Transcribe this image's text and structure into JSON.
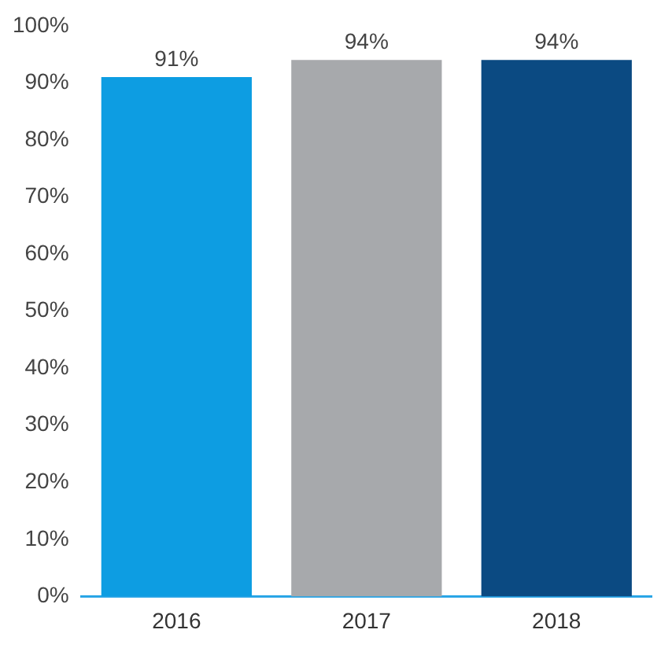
{
  "chart_data": {
    "type": "bar",
    "categories": [
      "2016",
      "2017",
      "2018"
    ],
    "values": [
      91,
      94,
      94
    ],
    "colors": [
      "#0d9de2",
      "#a7a9ac",
      "#0b4a82"
    ],
    "value_labels": [
      "91%",
      "94%",
      "94%"
    ],
    "ylim": [
      0,
      100
    ],
    "yticks": [
      {
        "value": 0,
        "label": "0%"
      },
      {
        "value": 10,
        "label": "10%"
      },
      {
        "value": 20,
        "label": "20%"
      },
      {
        "value": 30,
        "label": "30%"
      },
      {
        "value": 40,
        "label": "40%"
      },
      {
        "value": 50,
        "label": "50%"
      },
      {
        "value": 60,
        "label": "60%"
      },
      {
        "value": 70,
        "label": "70%"
      },
      {
        "value": 80,
        "label": "80%"
      },
      {
        "value": 90,
        "label": "90%"
      },
      {
        "value": 100,
        "label": "100%"
      }
    ],
    "grid": false,
    "legend": false
  }
}
